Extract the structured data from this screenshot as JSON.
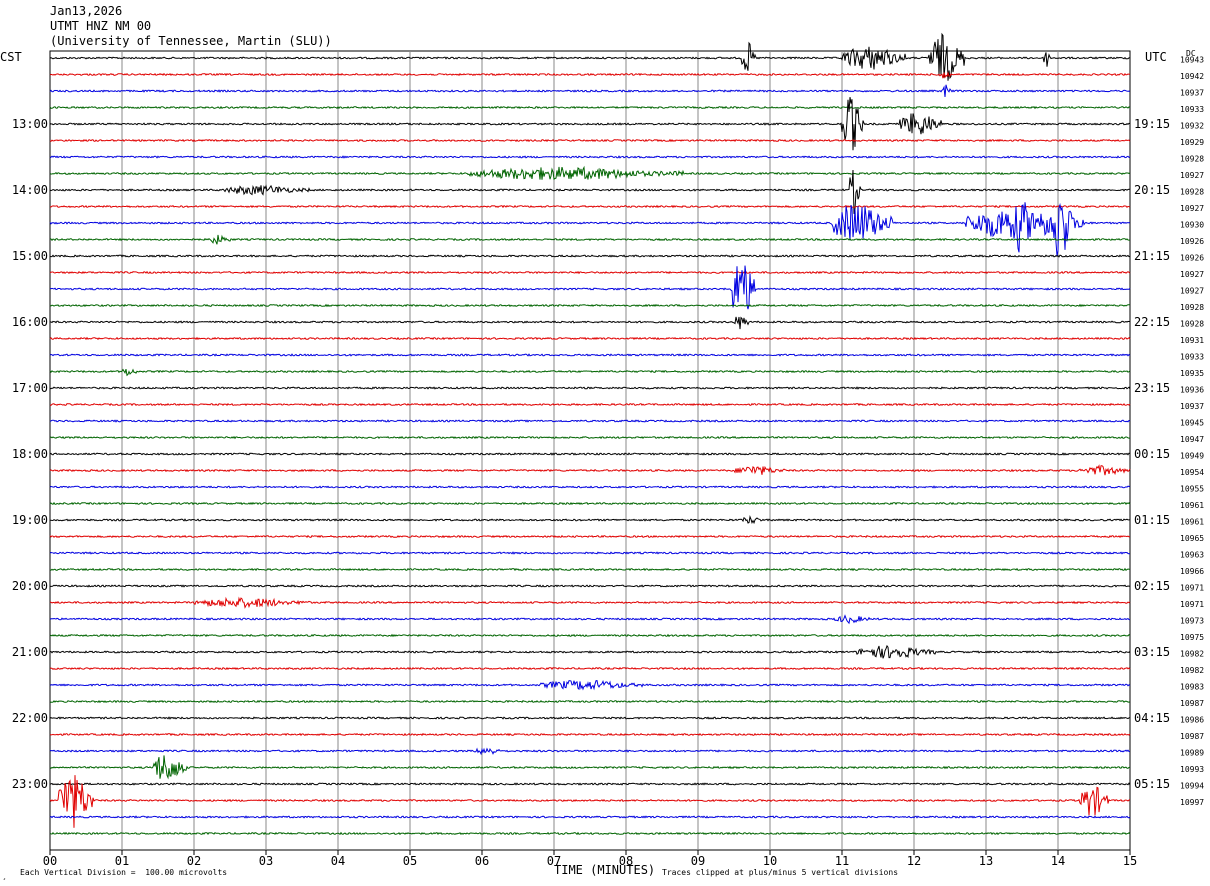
{
  "header": {
    "date": "Jan13,2026",
    "station": "UTMT HNZ NM 00",
    "network": "(University of Tennessee, Martin (SLU))"
  },
  "left_zone_label": "CST",
  "right_zone_label": "UTC",
  "dc_label": "DC",
  "footer": {
    "scale_note": "Each Vertical Division =  100.00 microvolts",
    "xlabel": "TIME (MINUTES)",
    "clip_note": "Traces clipped at plus/minus 5 vertical divisions",
    "corner_mark": "¸"
  },
  "chart_data": {
    "type": "line",
    "title": "",
    "xlabel": "TIME (MINUTES)",
    "ylabel": "",
    "xlim": [
      0,
      15
    ],
    "x_ticks": [
      "00",
      "01",
      "02",
      "03",
      "04",
      "05",
      "06",
      "07",
      "08",
      "09",
      "10",
      "11",
      "12",
      "13",
      "14",
      "15"
    ],
    "trace_minutes": 15,
    "trace_count": 48,
    "trace_colors": [
      "#000000",
      "#e00000",
      "#0000e0",
      "#006400"
    ],
    "grid": "vertical lines each minute",
    "left_hour_labels": [
      "13:00",
      "14:00",
      "15:00",
      "16:00",
      "17:00",
      "18:00",
      "19:00",
      "20:00",
      "21:00",
      "22:00",
      "23:00"
    ],
    "right_hour_labels": [
      "19:15",
      "20:15",
      "21:15",
      "22:15",
      "23:15",
      "00:15",
      "01:15",
      "02:15",
      "03:15",
      "04:15",
      "05:15"
    ],
    "dc_offsets": [
      "10943",
      "10942",
      "10937",
      "10933",
      "10932",
      "10929",
      "10928",
      "10927",
      "10928",
      "10927",
      "10930",
      "10926",
      "10926",
      "10927",
      "10927",
      "10928",
      "10928",
      "10931",
      "10933",
      "10935",
      "10936",
      "10937",
      "10945",
      "10947",
      "10949",
      "10954",
      "10955",
      "10961",
      "10961",
      "10965",
      "10963",
      "10966",
      "10971",
      "10971",
      "10973",
      "10975",
      "10982",
      "10982",
      "10983",
      "10987",
      "10986",
      "10987",
      "10989",
      "10993",
      "10994",
      "10997"
    ],
    "events": [
      {
        "trace": 0,
        "start": 9.6,
        "end": 9.8,
        "amp": 2.0
      },
      {
        "trace": 0,
        "start": 11.0,
        "end": 11.9,
        "amp": 1.5
      },
      {
        "trace": 0,
        "start": 12.2,
        "end": 12.7,
        "amp": 3.0
      },
      {
        "trace": 0,
        "start": 13.8,
        "end": 13.9,
        "amp": 1.2
      },
      {
        "trace": 1,
        "start": 12.35,
        "end": 12.5,
        "amp": 0.8
      },
      {
        "trace": 2,
        "start": 12.4,
        "end": 12.5,
        "amp": 1.0
      },
      {
        "trace": 4,
        "start": 11.0,
        "end": 11.3,
        "amp": 3.5
      },
      {
        "trace": 4,
        "start": 11.8,
        "end": 12.4,
        "amp": 1.5
      },
      {
        "trace": 7,
        "start": 5.8,
        "end": 8.8,
        "amp": 0.8
      },
      {
        "trace": 8,
        "start": 2.4,
        "end": 3.6,
        "amp": 0.6
      },
      {
        "trace": 8,
        "start": 11.1,
        "end": 11.25,
        "amp": 3.0
      },
      {
        "trace": 10,
        "start": 10.85,
        "end": 11.7,
        "amp": 2.5
      },
      {
        "trace": 10,
        "start": 12.7,
        "end": 14.4,
        "amp": 2.0
      },
      {
        "trace": 10,
        "start": 13.4,
        "end": 13.6,
        "amp": 4.0
      },
      {
        "trace": 10,
        "start": 13.9,
        "end": 14.2,
        "amp": 5.0
      },
      {
        "trace": 11,
        "start": 2.2,
        "end": 2.5,
        "amp": 0.6
      },
      {
        "trace": 14,
        "start": 9.45,
        "end": 9.8,
        "amp": 4.0
      },
      {
        "trace": 16,
        "start": 9.5,
        "end": 9.7,
        "amp": 1.0
      },
      {
        "trace": 19,
        "start": 1.0,
        "end": 1.2,
        "amp": 0.6
      },
      {
        "trace": 25,
        "start": 9.5,
        "end": 10.2,
        "amp": 0.6
      },
      {
        "trace": 25,
        "start": 14.3,
        "end": 15.0,
        "amp": 0.6
      },
      {
        "trace": 28,
        "start": 9.6,
        "end": 9.9,
        "amp": 0.5
      },
      {
        "trace": 33,
        "start": 2.0,
        "end": 3.6,
        "amp": 0.6
      },
      {
        "trace": 34,
        "start": 10.9,
        "end": 11.4,
        "amp": 0.5
      },
      {
        "trace": 36,
        "start": 11.2,
        "end": 12.3,
        "amp": 0.8
      },
      {
        "trace": 38,
        "start": 6.8,
        "end": 8.3,
        "amp": 0.6
      },
      {
        "trace": 42,
        "start": 5.9,
        "end": 6.3,
        "amp": 0.5
      },
      {
        "trace": 43,
        "start": 1.4,
        "end": 1.9,
        "amp": 1.8
      },
      {
        "trace": 45,
        "start": 0.1,
        "end": 0.6,
        "amp": 3.5
      },
      {
        "trace": 45,
        "start": 14.3,
        "end": 14.7,
        "amp": 2.0
      }
    ]
  }
}
